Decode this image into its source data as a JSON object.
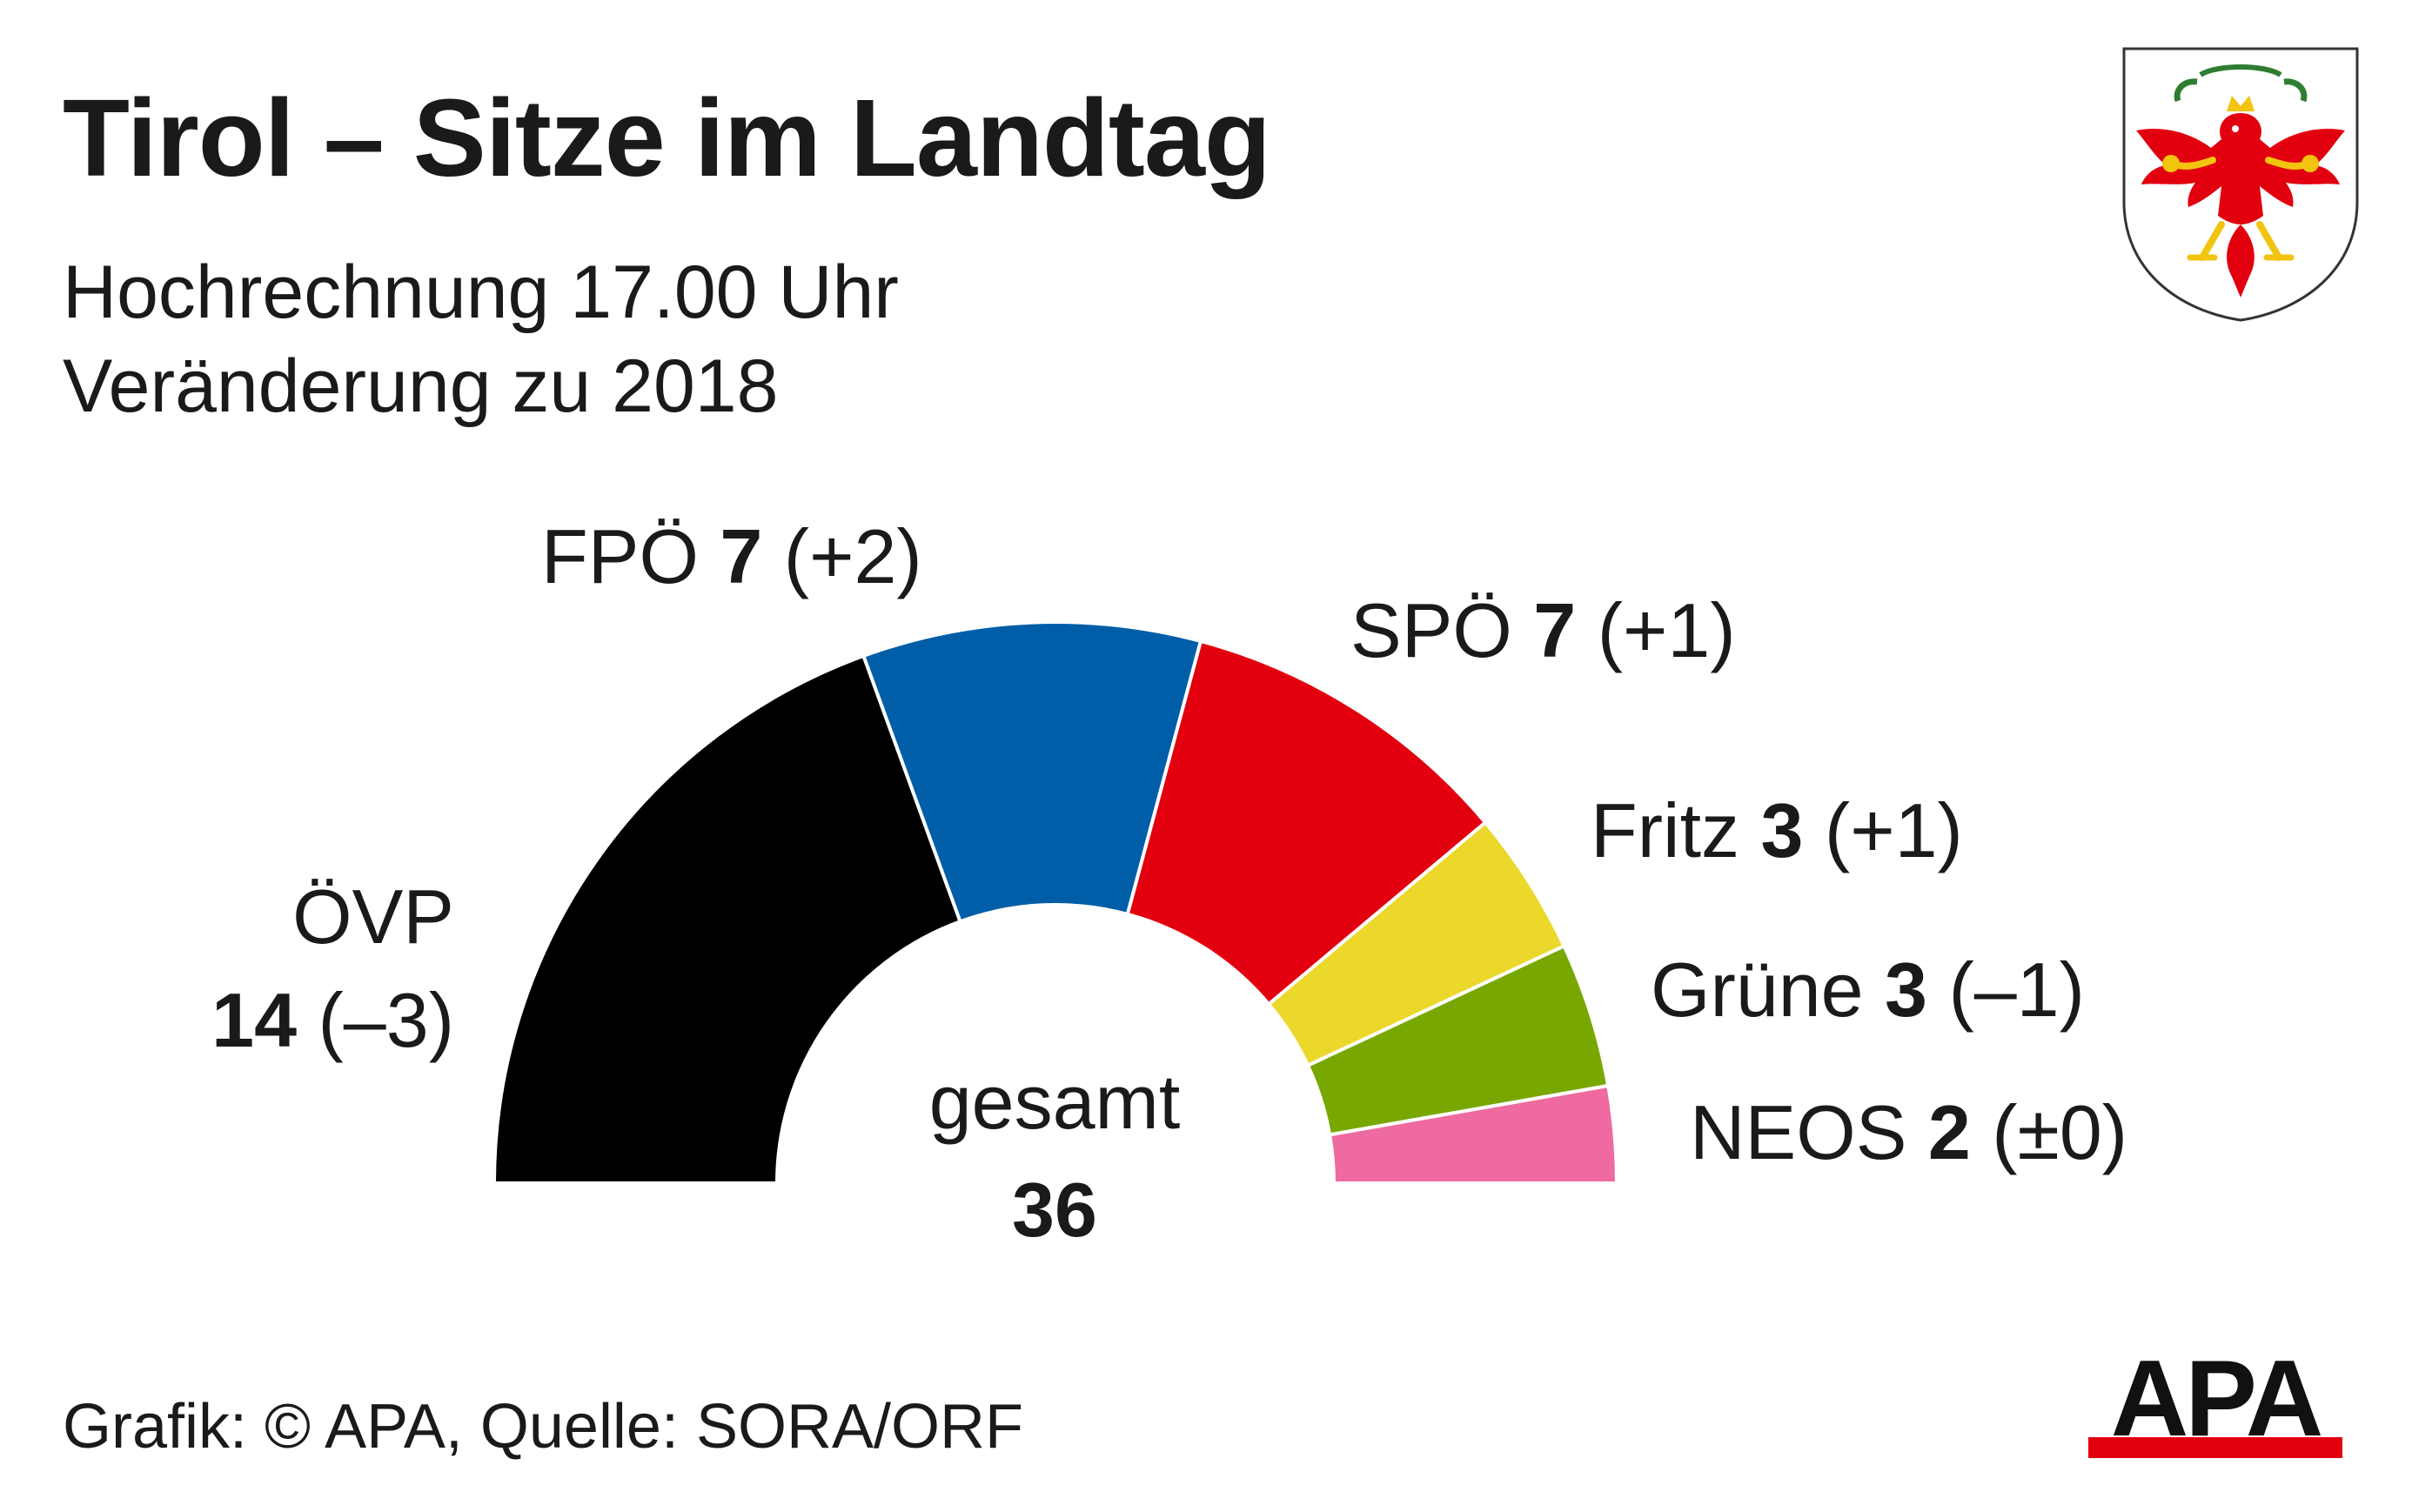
{
  "header": {
    "title": "Tirol – Sitze im Landtag",
    "subtitle_line1": "Hochrechnung 17.00 Uhr",
    "subtitle_line2": "Veränderung zu 2018"
  },
  "chart_data": {
    "type": "pie",
    "variant": "half-donut parliament",
    "total_label": "gesamt",
    "total_value": "36",
    "series": [
      {
        "name": "ÖVP",
        "seats": 14,
        "change": "–3",
        "color": "#000000"
      },
      {
        "name": "FPÖ",
        "seats": 7,
        "change": "+2",
        "color": "#005ea8"
      },
      {
        "name": "SPÖ",
        "seats": 7,
        "change": "+1",
        "color": "#e2000f"
      },
      {
        "name": "Fritz",
        "seats": 3,
        "change": "+1",
        "color": "#ecd82a"
      },
      {
        "name": "Grüne",
        "seats": 3,
        "change": "–1",
        "color": "#78a700"
      },
      {
        "name": "NEOS",
        "seats": 2,
        "change": "±0",
        "color": "#ee6aa0"
      }
    ]
  },
  "footer": {
    "source": "Grafik: © APA, Quelle: SORA/ORF"
  },
  "logos": {
    "crest": "tirol-coat-of-arms",
    "apa_logo_text": "APA"
  }
}
